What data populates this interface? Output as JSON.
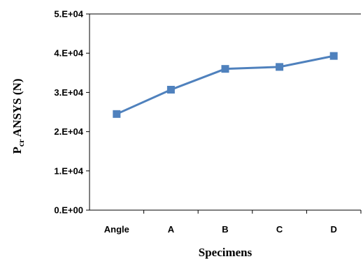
{
  "chart_data": {
    "type": "line",
    "title": "",
    "xlabel": "Specimens",
    "ylabel": {
      "prefix": "P",
      "subscript": "cr",
      "suffix": " ANSYS (N)"
    },
    "categories": [
      "Angle",
      "A",
      "B",
      "C",
      "D"
    ],
    "series": [
      {
        "values": [
          24500,
          30700,
          36000,
          36500,
          39300
        ]
      }
    ],
    "ylim": [
      0,
      50000
    ],
    "yticks": [
      "0.E+00",
      "1.E+04",
      "2.E+04",
      "3.E+04",
      "4.E+04",
      "5.E+04"
    ],
    "grid": false,
    "legend": "none",
    "colors": {
      "line": "#4f81bd",
      "marker": "#4f81bd",
      "axis": "#000000"
    }
  }
}
